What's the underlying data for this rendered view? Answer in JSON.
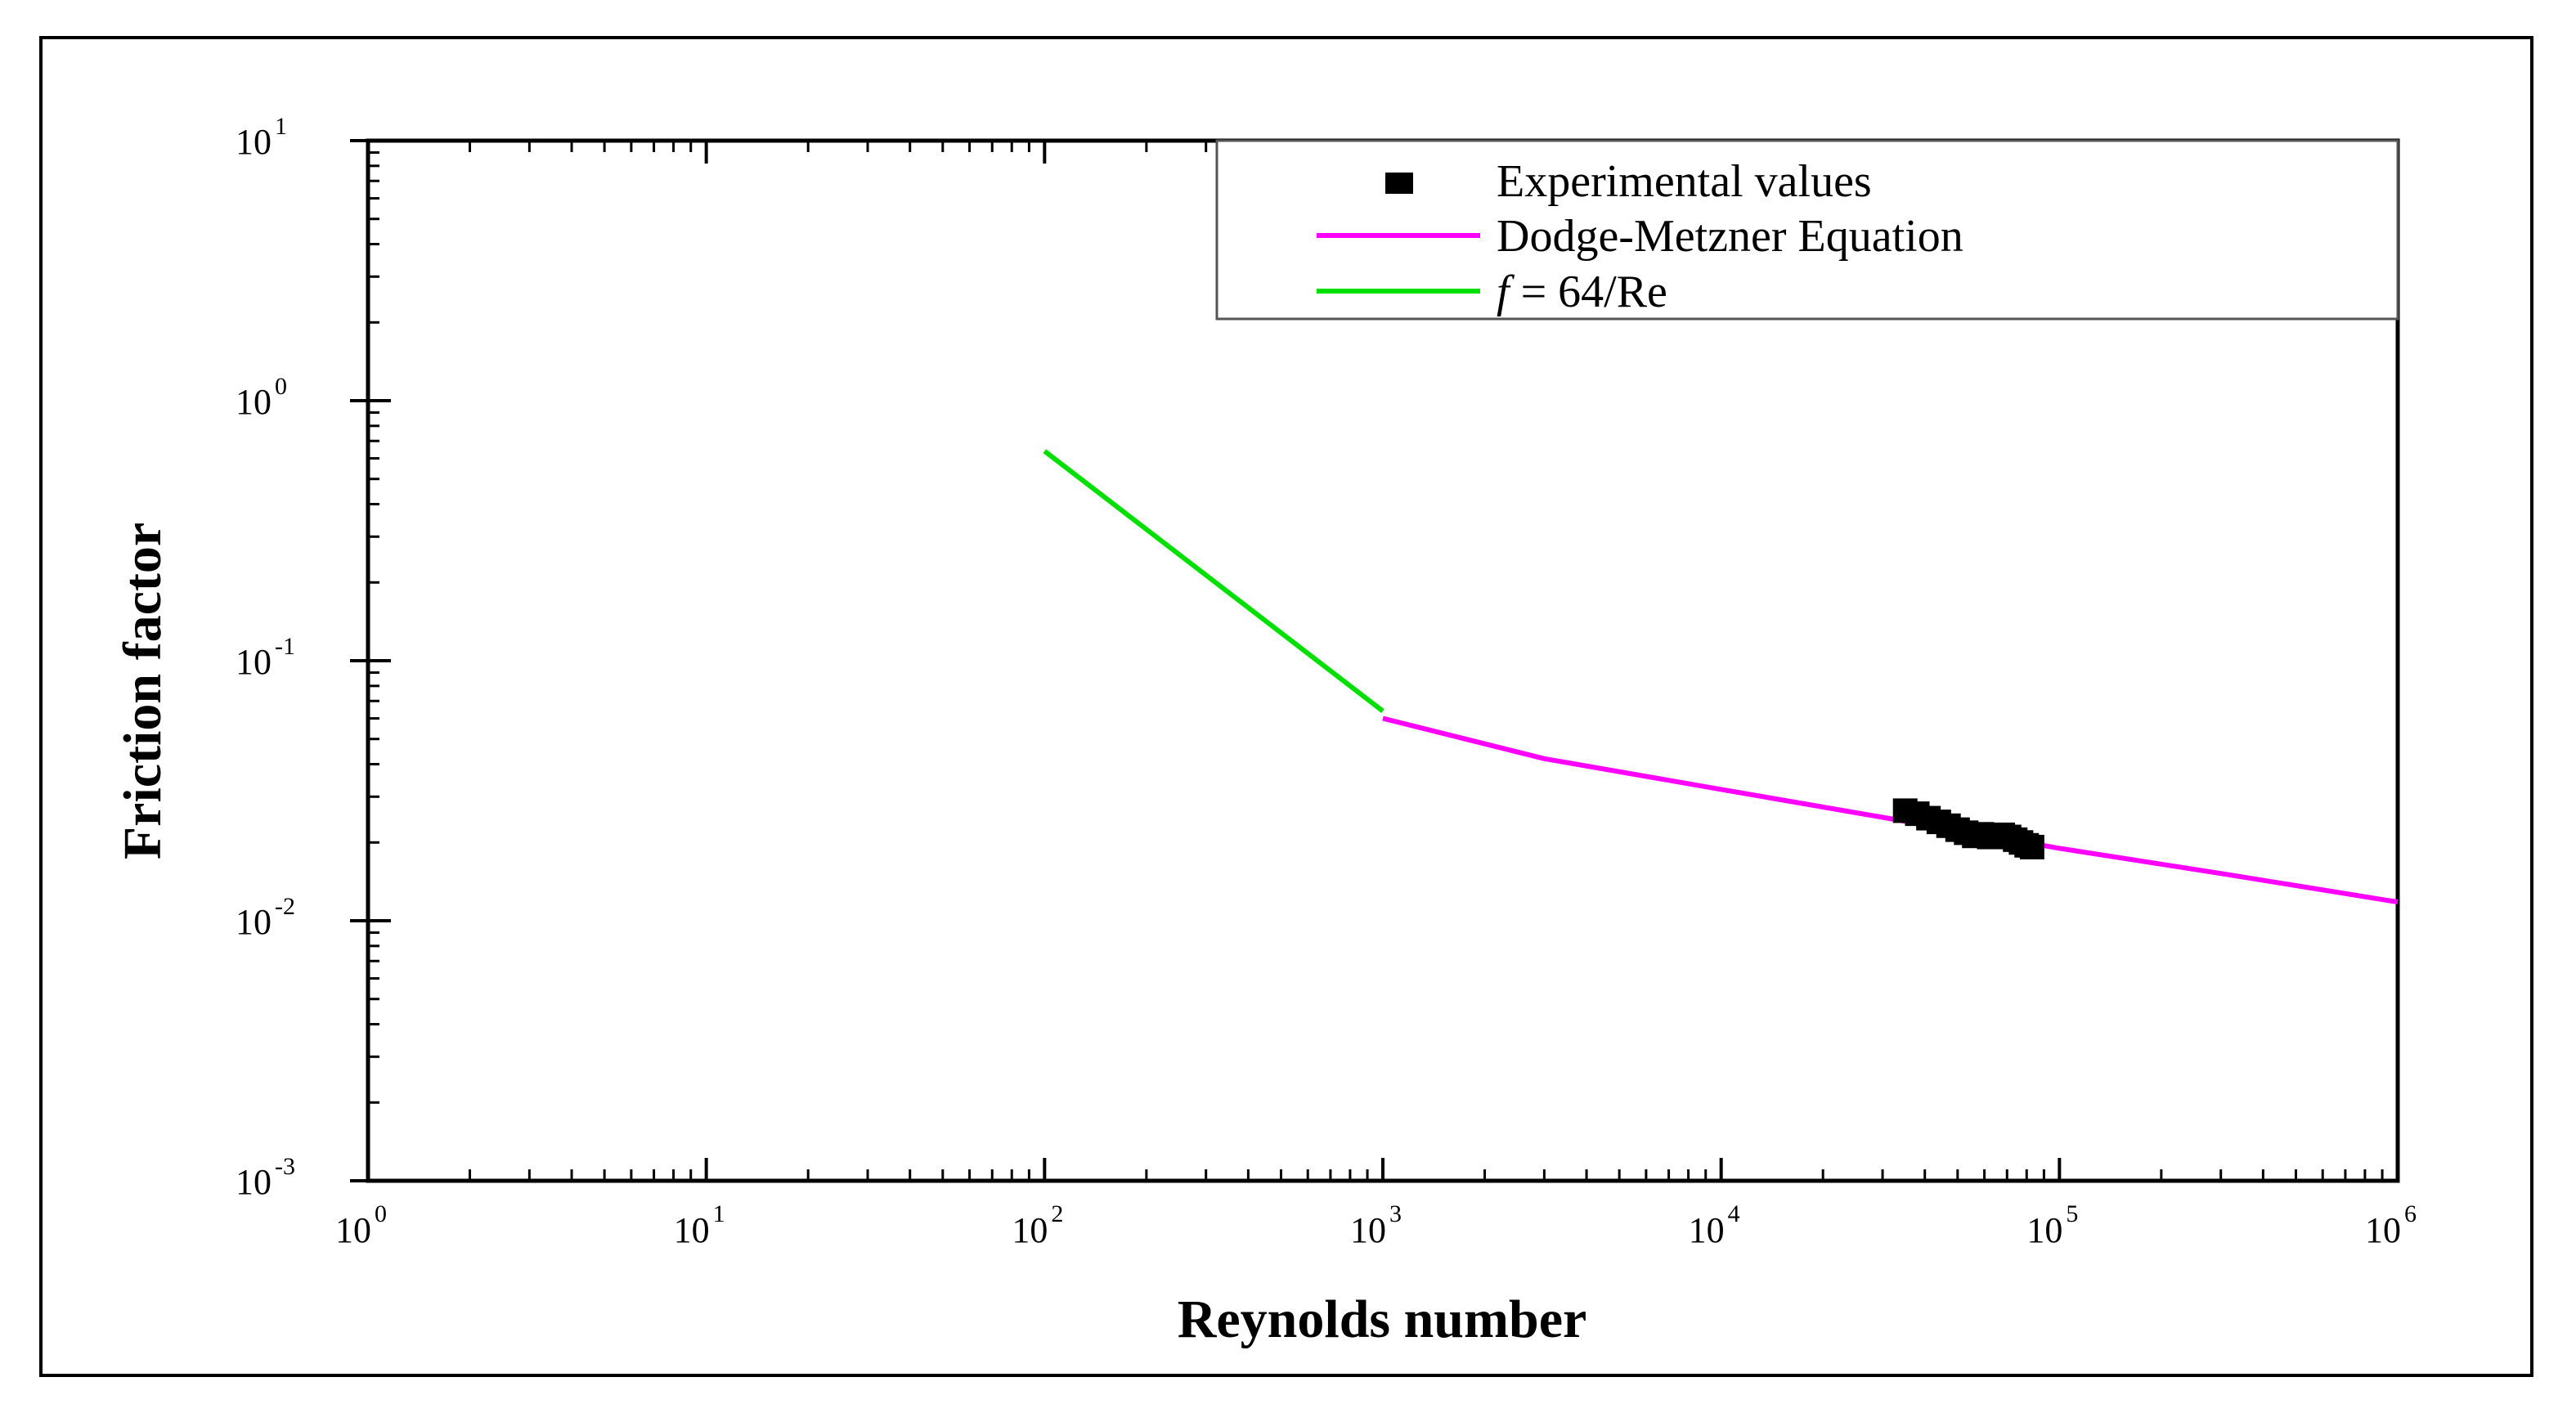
{
  "chart_data": {
    "type": "line",
    "title": "",
    "xlabel": "Reynolds number",
    "ylabel": "Friction factor",
    "xscale": "log",
    "yscale": "log",
    "xlim": [
      1,
      1000000
    ],
    "ylim": [
      0.001,
      10
    ],
    "x_ticks": [
      {
        "base": "10",
        "exp": "0",
        "value": 1
      },
      {
        "base": "10",
        "exp": "1",
        "value": 10
      },
      {
        "base": "10",
        "exp": "2",
        "value": 100
      },
      {
        "base": "10",
        "exp": "3",
        "value": 1000
      },
      {
        "base": "10",
        "exp": "4",
        "value": 10000
      },
      {
        "base": "10",
        "exp": "5",
        "value": 100000
      },
      {
        "base": "10",
        "exp": "6",
        "value": 1000000
      }
    ],
    "y_ticks": [
      {
        "base": "10",
        "exp": "-3",
        "value": 0.001
      },
      {
        "base": "10",
        "exp": "-2",
        "value": 0.01
      },
      {
        "base": "10",
        "exp": "-1",
        "value": 0.1
      },
      {
        "base": "10",
        "exp": "0",
        "value": 1
      },
      {
        "base": "10",
        "exp": "1",
        "value": 10
      }
    ],
    "legend_position": "top-right",
    "series": [
      {
        "name": "Experimental values",
        "kind": "scatter",
        "color": "#000000",
        "points": [
          {
            "x": 35000,
            "y": 0.0265
          },
          {
            "x": 38000,
            "y": 0.0258
          },
          {
            "x": 41000,
            "y": 0.0248
          },
          {
            "x": 44000,
            "y": 0.024
          },
          {
            "x": 47000,
            "y": 0.0232
          },
          {
            "x": 50000,
            "y": 0.0224
          },
          {
            "x": 53000,
            "y": 0.0218
          },
          {
            "x": 56000,
            "y": 0.0212
          },
          {
            "x": 59000,
            "y": 0.0215
          },
          {
            "x": 62000,
            "y": 0.021
          },
          {
            "x": 65000,
            "y": 0.0213
          },
          {
            "x": 68000,
            "y": 0.0214
          },
          {
            "x": 71000,
            "y": 0.021
          },
          {
            "x": 74000,
            "y": 0.0205
          },
          {
            "x": 77000,
            "y": 0.02
          },
          {
            "x": 80000,
            "y": 0.0195
          },
          {
            "x": 83000,
            "y": 0.0192
          }
        ]
      },
      {
        "name": "Dodge-Metzner Equation",
        "kind": "line",
        "color": "#ff00ff",
        "points": [
          {
            "x": 1000,
            "y": 0.06
          },
          {
            "x": 3000,
            "y": 0.042
          },
          {
            "x": 10000,
            "y": 0.032
          },
          {
            "x": 30000,
            "y": 0.025
          },
          {
            "x": 100000,
            "y": 0.019
          },
          {
            "x": 300000,
            "y": 0.0152
          },
          {
            "x": 1000000,
            "y": 0.0118
          }
        ]
      },
      {
        "name_prefix": "f",
        "name": " = 64/Re",
        "kind": "line",
        "color": "#00e000",
        "points": [
          {
            "x": 100,
            "y": 0.64
          },
          {
            "x": 1000,
            "y": 0.064
          }
        ]
      }
    ]
  }
}
